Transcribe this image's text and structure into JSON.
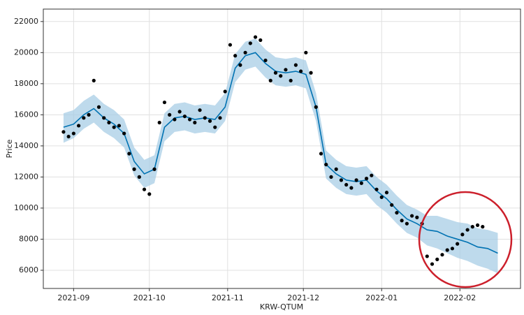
{
  "chart_data": {
    "type": "scatter",
    "xlabel": "KRW-QTUM",
    "ylabel": "Price",
    "xlim": [
      -12,
      177
    ],
    "ylim": [
      4830,
      22800
    ],
    "xticks": [
      {
        "value": 0,
        "label": "2021-09"
      },
      {
        "value": 30,
        "label": "2021-10"
      },
      {
        "value": 61,
        "label": "2021-11"
      },
      {
        "value": 91,
        "label": "2021-12"
      },
      {
        "value": 122,
        "label": "2022-01"
      },
      {
        "value": 153,
        "label": "2022-02"
      }
    ],
    "yticks": [
      6000,
      8000,
      10000,
      12000,
      14000,
      16000,
      18000,
      20000,
      22000
    ],
    "grid": true,
    "actual": {
      "color": "#000000",
      "x": [
        -4,
        -2,
        0,
        2,
        4,
        6,
        8,
        10,
        12,
        14,
        16,
        18,
        20,
        22,
        24,
        26,
        28,
        30,
        32,
        34,
        36,
        38,
        40,
        42,
        44,
        46,
        48,
        50,
        52,
        54,
        56,
        58,
        60,
        62,
        64,
        66,
        68,
        70,
        72,
        74,
        76,
        78,
        80,
        82,
        84,
        86,
        88,
        90,
        92,
        94,
        96,
        98,
        100,
        102,
        104,
        106,
        108,
        110,
        112,
        114,
        116,
        118,
        120,
        122,
        124,
        126,
        128,
        130,
        132,
        134,
        136,
        138,
        140,
        142,
        144,
        146,
        148,
        150,
        152,
        154,
        156,
        158,
        160,
        162
      ],
      "values": [
        14900,
        14600,
        14800,
        15300,
        15800,
        16000,
        18200,
        16500,
        15800,
        15500,
        15200,
        15300,
        14800,
        13500,
        12500,
        12000,
        11200,
        10900,
        12500,
        15500,
        16800,
        16000,
        15700,
        16200,
        15900,
        15700,
        15500,
        16300,
        15800,
        15600,
        15200,
        15800,
        17500,
        20500,
        19800,
        19200,
        20000,
        20600,
        21000,
        20800,
        19500,
        18200,
        18700,
        18500,
        18900,
        18200,
        19200,
        18800,
        20000,
        18700,
        16500,
        13500,
        12800,
        12000,
        12500,
        11800,
        11500,
        11300,
        11800,
        11600,
        11900,
        12100,
        11200,
        10700,
        11000,
        10200,
        9700,
        9200,
        9000,
        9500,
        9400,
        9000,
        6900,
        6400,
        6700,
        7000,
        7300,
        7400,
        7700,
        8300,
        8600,
        8800,
        8900,
        8800
      ]
    },
    "forecast": {
      "color": "#0072b2",
      "band_color": "#a8cde6",
      "x": [
        -4,
        0,
        4,
        8,
        12,
        16,
        20,
        24,
        28,
        32,
        36,
        40,
        44,
        48,
        52,
        56,
        60,
        64,
        68,
        72,
        76,
        80,
        84,
        88,
        92,
        96,
        100,
        104,
        108,
        112,
        116,
        120,
        124,
        128,
        132,
        136,
        140,
        144,
        148,
        152,
        156,
        160,
        164,
        168
      ],
      "values": [
        15200,
        15400,
        16000,
        16400,
        15800,
        15400,
        14800,
        13000,
        12200,
        12500,
        15200,
        15800,
        15900,
        15700,
        15800,
        15700,
        16500,
        19000,
        19800,
        20000,
        19300,
        18800,
        18700,
        18800,
        18600,
        16500,
        12800,
        12200,
        11800,
        11700,
        11800,
        11100,
        10600,
        9900,
        9300,
        9000,
        8600,
        8500,
        8200,
        8000,
        7800,
        7500,
        7400,
        7100
      ],
      "lower": [
        14200,
        14500,
        15100,
        15500,
        14900,
        14500,
        13900,
        12100,
        11300,
        11600,
        14300,
        14900,
        15000,
        14800,
        14900,
        14800,
        15600,
        18100,
        18900,
        19100,
        18400,
        17900,
        17800,
        17900,
        17700,
        15600,
        11900,
        11300,
        10900,
        10800,
        10900,
        10200,
        9700,
        9000,
        8400,
        8100,
        7600,
        7400,
        7100,
        6800,
        6600,
        6300,
        6100,
        5800
      ],
      "upper": [
        16100,
        16300,
        16900,
        17300,
        16700,
        16300,
        15700,
        13900,
        13100,
        13400,
        16100,
        16700,
        16800,
        16600,
        16700,
        16600,
        17400,
        19900,
        20700,
        20900,
        20200,
        19700,
        19600,
        19700,
        19500,
        17400,
        13700,
        13100,
        12700,
        12600,
        12700,
        12000,
        11500,
        10800,
        10200,
        9900,
        9500,
        9500,
        9300,
        9100,
        9000,
        8700,
        8600,
        8400
      ]
    }
  }
}
